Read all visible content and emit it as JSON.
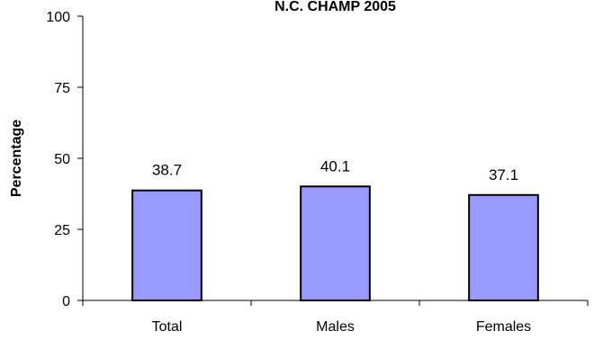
{
  "chart_data": {
    "type": "bar",
    "title": "N.C. CHAMP 2005",
    "ylabel": "Percentage",
    "xlabel": "",
    "categories": [
      "Total",
      "Males",
      "Females"
    ],
    "values": [
      38.7,
      40.1,
      37.1
    ],
    "value_labels": [
      "38.7",
      "40.1",
      "37.1"
    ],
    "ylim": [
      0,
      100
    ],
    "yticks": [
      0,
      25,
      50,
      75,
      100
    ],
    "ytick_labels": [
      "0",
      "25",
      "50",
      "75",
      "100"
    ],
    "grid": false,
    "bar_color": "#9999FF",
    "bar_edge_color": "#000000"
  }
}
